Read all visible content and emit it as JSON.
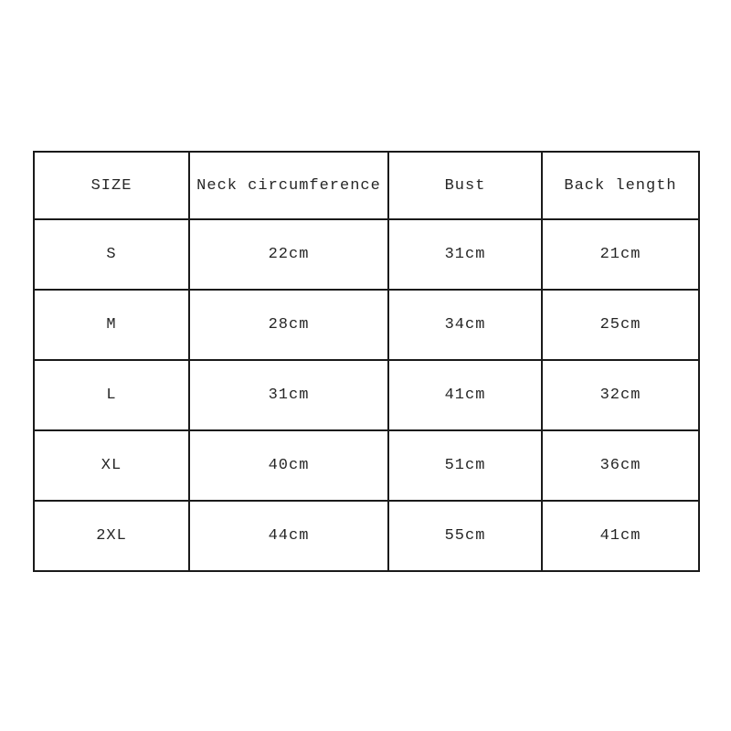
{
  "table": {
    "columns": [
      "SIZE",
      "Neck circumference",
      "Bust",
      "Back length"
    ],
    "rows": [
      {
        "size": "S",
        "neck": "22cm",
        "bust": "31cm",
        "back": "21cm"
      },
      {
        "size": "M",
        "neck": "28cm",
        "bust": "34cm",
        "back": "25cm"
      },
      {
        "size": "L",
        "neck": "31cm",
        "bust": "41cm",
        "back": "32cm"
      },
      {
        "size": "XL",
        "neck": "40cm",
        "bust": "51cm",
        "back": "36cm"
      },
      {
        "size": "2XL",
        "neck": "44cm",
        "bust": "55cm",
        "back": "41cm"
      }
    ],
    "border_color": "#1a1a1a",
    "text_color": "#262626",
    "background_color": "#ffffff"
  },
  "chart_data": {
    "type": "table",
    "title": "",
    "columns": [
      "SIZE",
      "Neck circumference",
      "Bust",
      "Back length"
    ],
    "rows": [
      [
        "S",
        "22cm",
        "31cm",
        "21cm"
      ],
      [
        "M",
        "28cm",
        "34cm",
        "25cm"
      ],
      [
        "L",
        "31cm",
        "41cm",
        "32cm"
      ],
      [
        "XL",
        "40cm",
        "51cm",
        "36cm"
      ],
      [
        "2XL",
        "44cm",
        "55cm",
        "41cm"
      ]
    ],
    "units": "cm",
    "legend_position": "none",
    "grid": true
  }
}
